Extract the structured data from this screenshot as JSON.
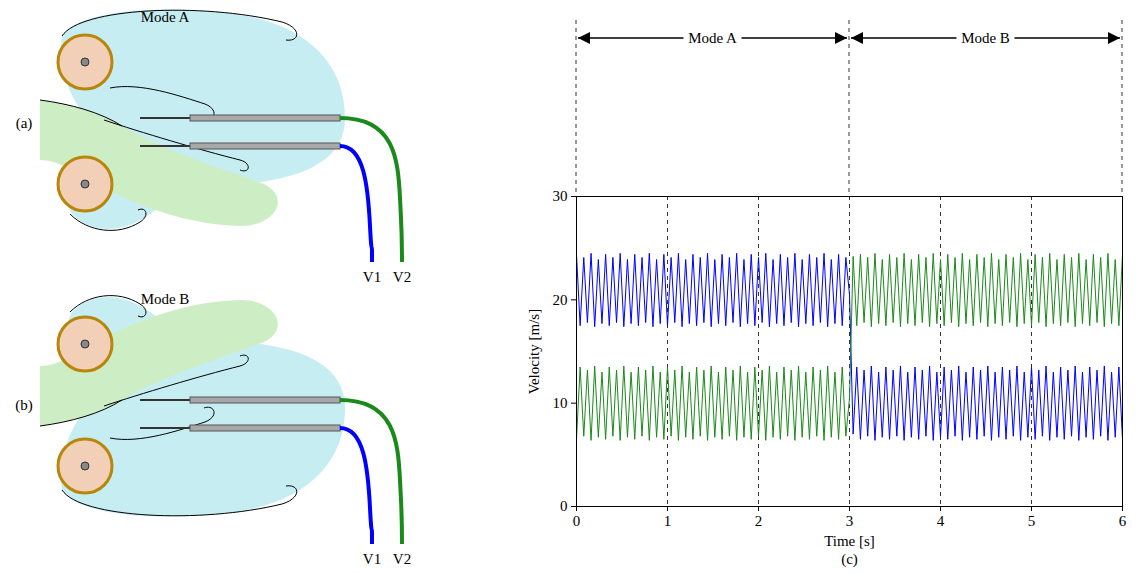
{
  "diagrams": [
    {
      "label": "(a)",
      "title": "Mode A",
      "probes": [
        "V1",
        "V2"
      ]
    },
    {
      "label": "(b)",
      "title": "Mode B",
      "probes": [
        "V1",
        "V2"
      ]
    }
  ],
  "chart_data": {
    "type": "line",
    "panel_label": "(c)",
    "x_label": "Time [s]",
    "y_label": "Velocity [m/s]",
    "xlim": [
      0,
      6
    ],
    "xticks": [
      0,
      1,
      2,
      3,
      4,
      5,
      6
    ],
    "ylim": [
      0,
      30
    ],
    "yticks": [
      0,
      10,
      20,
      30
    ],
    "grid": "x",
    "annotations": [
      {
        "text": "Mode A",
        "x": [
          0,
          3
        ]
      },
      {
        "text": "Mode B",
        "x": [
          3,
          6
        ]
      }
    ],
    "x": [
      0,
      0.04,
      0.08,
      0.12,
      0.16,
      0.2,
      0.24,
      0.28,
      0.32,
      0.36,
      0.4,
      0.44,
      0.48,
      0.52,
      0.56,
      0.6,
      0.64,
      0.68,
      0.72,
      0.76,
      0.8,
      0.84,
      0.88,
      0.92,
      0.96,
      1,
      1.04,
      1.08,
      1.12,
      1.16,
      1.2,
      1.24,
      1.28,
      1.32,
      1.36,
      1.4,
      1.44,
      1.48,
      1.52,
      1.56,
      1.6,
      1.64,
      1.68,
      1.72,
      1.76,
      1.8,
      1.84,
      1.88,
      1.92,
      1.96,
      2,
      2.04,
      2.08,
      2.12,
      2.16,
      2.2,
      2.24,
      2.28,
      2.32,
      2.36,
      2.4,
      2.44,
      2.48,
      2.52,
      2.56,
      2.6,
      2.64,
      2.68,
      2.72,
      2.76,
      2.8,
      2.84,
      2.88,
      2.92,
      2.96,
      3,
      3.04,
      3.08,
      3.12,
      3.16,
      3.2,
      3.24,
      3.28,
      3.32,
      3.36,
      3.4,
      3.44,
      3.48,
      3.52,
      3.56,
      3.6,
      3.64,
      3.68,
      3.72,
      3.76,
      3.8,
      3.84,
      3.88,
      3.92,
      3.96,
      4,
      4.04,
      4.08,
      4.12,
      4.16,
      4.2,
      4.24,
      4.28,
      4.32,
      4.36,
      4.4,
      4.44,
      4.48,
      4.52,
      4.56,
      4.6,
      4.64,
      4.68,
      4.72,
      4.76,
      4.8,
      4.84,
      4.88,
      4.92,
      4.96,
      5,
      5.04,
      5.08,
      5.12,
      5.16,
      5.2,
      5.24,
      5.28,
      5.32,
      5.36,
      5.4,
      5.44,
      5.48,
      5.52,
      5.56,
      5.6,
      5.64,
      5.68,
      5.72,
      5.76,
      5.8,
      5.84,
      5.88,
      5.92,
      5.96,
      6
    ],
    "series": [
      {
        "name": "V1",
        "color": "#0000ff",
        "values": [
          24.4,
          17.5,
          24.1,
          17.8,
          24.5,
          17.4,
          23.9,
          17.7,
          24.4,
          17.5,
          24.1,
          17.8,
          24.5,
          17.4,
          23.9,
          17.7,
          24.4,
          17.5,
          24.1,
          17.8,
          24.5,
          17.4,
          23.9,
          17.7,
          24.4,
          17.5,
          24.1,
          17.8,
          24.5,
          17.4,
          23.9,
          17.7,
          24.4,
          17.5,
          24.1,
          17.8,
          24.5,
          17.4,
          23.9,
          17.7,
          24.4,
          17.5,
          24.1,
          17.8,
          24.5,
          17.4,
          23.9,
          17.7,
          24.4,
          17.5,
          24.1,
          17.8,
          24.5,
          17.4,
          23.9,
          17.7,
          24.4,
          17.5,
          24.1,
          17.8,
          24.5,
          17.4,
          23.9,
          17.7,
          24.4,
          17.5,
          24.1,
          17.8,
          24.5,
          17.4,
          23.9,
          17.7,
          24.4,
          17.5,
          24.1,
          20.5,
          7.0,
          13.5,
          6.5,
          13.2,
          6.8,
          13.6,
          6.4,
          13.0,
          6.7,
          13.5,
          6.5,
          13.2,
          6.8,
          13.6,
          6.4,
          13.0,
          6.7,
          13.5,
          6.5,
          13.2,
          6.8,
          13.6,
          6.4,
          13.0,
          6.7,
          13.5,
          6.5,
          13.2,
          6.8,
          13.6,
          6.4,
          13.0,
          6.7,
          13.5,
          6.5,
          13.2,
          6.8,
          13.6,
          6.4,
          13.0,
          6.7,
          13.5,
          6.5,
          13.2,
          6.8,
          13.6,
          6.4,
          13.0,
          6.7,
          13.5,
          6.5,
          13.2,
          6.8,
          13.6,
          6.4,
          13.0,
          6.7,
          13.5,
          6.5,
          13.2,
          6.8,
          13.6,
          6.4,
          13.0,
          6.7,
          13.5,
          6.5,
          13.2,
          6.8,
          13.6,
          6.4,
          13.0,
          6.7,
          13.5,
          6.5
        ]
      },
      {
        "name": "V2",
        "color": "#1a8a1a",
        "values": [
          6.5,
          13.5,
          6.8,
          13.2,
          6.4,
          13.6,
          6.7,
          13.0,
          6.5,
          13.5,
          6.8,
          13.2,
          6.4,
          13.6,
          6.7,
          13.0,
          6.5,
          13.5,
          6.8,
          13.2,
          6.4,
          13.6,
          6.7,
          13.0,
          6.5,
          13.5,
          6.8,
          13.2,
          6.4,
          13.6,
          6.7,
          13.0,
          6.5,
          13.5,
          6.8,
          13.2,
          6.4,
          13.6,
          6.7,
          13.0,
          6.5,
          13.5,
          6.8,
          13.2,
          6.4,
          13.6,
          6.7,
          13.0,
          6.5,
          13.5,
          6.8,
          13.2,
          6.4,
          13.6,
          6.7,
          13.0,
          6.5,
          13.5,
          6.8,
          13.2,
          6.4,
          13.6,
          6.7,
          13.0,
          6.5,
          13.5,
          6.8,
          13.2,
          6.4,
          13.6,
          6.7,
          13.0,
          6.5,
          13.5,
          6.8,
          10.5,
          24.2,
          17.5,
          24.4,
          17.8,
          24.1,
          17.4,
          24.5,
          17.7,
          23.9,
          17.5,
          24.4,
          17.8,
          24.1,
          17.4,
          24.5,
          17.7,
          23.9,
          17.5,
          24.4,
          17.8,
          24.1,
          17.4,
          24.5,
          17.7,
          23.9,
          17.5,
          24.4,
          17.8,
          24.1,
          17.4,
          24.5,
          17.7,
          23.9,
          17.5,
          24.4,
          17.8,
          24.1,
          17.4,
          24.5,
          17.7,
          23.9,
          17.5,
          24.4,
          17.8,
          24.1,
          17.4,
          24.5,
          17.7,
          23.9,
          17.5,
          24.4,
          17.8,
          24.1,
          17.4,
          24.5,
          17.7,
          23.9,
          17.5,
          24.4,
          17.8,
          24.1,
          17.4,
          24.5,
          17.7,
          23.9,
          17.5,
          24.4,
          17.8,
          24.1,
          17.4,
          24.5,
          17.7,
          23.9,
          17.5,
          24.4
        ]
      }
    ]
  }
}
